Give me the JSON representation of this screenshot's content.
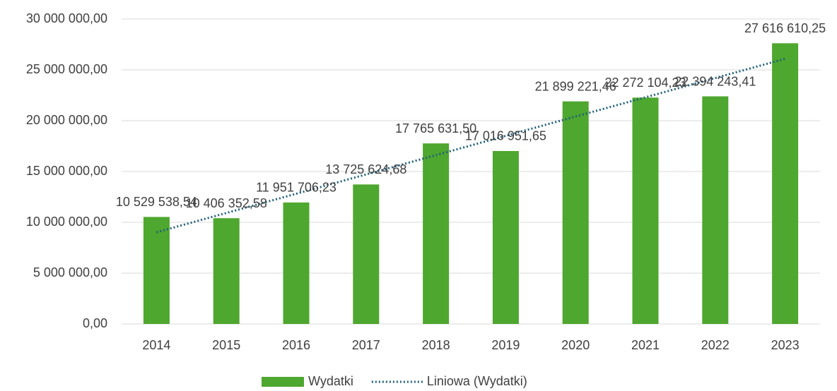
{
  "chart_data": {
    "type": "bar",
    "categories": [
      "2014",
      "2015",
      "2016",
      "2017",
      "2018",
      "2019",
      "2020",
      "2021",
      "2022",
      "2023"
    ],
    "series": [
      {
        "name": "Wydatki",
        "color": "#4ea72e",
        "values": [
          10529538.54,
          10406352.58,
          11951706.23,
          13725624.68,
          17765631.5,
          17016951.65,
          21899221.46,
          22272104.23,
          22394243.41,
          27616610.25
        ],
        "value_labels": [
          "10 529 538,54",
          "10 406 352,58",
          "11 951 706,23",
          "13 725 624,68",
          "17 765 631,50",
          "17 016 951,65",
          "21 899 221,46",
          "22 272 104,23",
          "22 394 243,41",
          "27 616 610,25"
        ]
      },
      {
        "name": "Liniowa (Wydatki)",
        "type": "line",
        "color": "#1f5f7a",
        "dash": "dotted",
        "values": [
          9020000,
          10920000,
          12810000,
          14710000,
          16610000,
          18510000,
          20410000,
          22300000,
          24200000,
          26090000
        ]
      }
    ],
    "ylim": [
      0,
      30000000
    ],
    "yticks": [
      {
        "value": 0,
        "label": "0,00"
      },
      {
        "value": 5000000,
        "label": "5 000 000,00"
      },
      {
        "value": 10000000,
        "label": "10 000 000,00"
      },
      {
        "value": 15000000,
        "label": "15 000 000,00"
      },
      {
        "value": 20000000,
        "label": "20 000 000,00"
      },
      {
        "value": 25000000,
        "label": "25 000 000,00"
      },
      {
        "value": 30000000,
        "label": "30 000 000,00"
      }
    ],
    "grid": true,
    "legend": "bottom"
  }
}
